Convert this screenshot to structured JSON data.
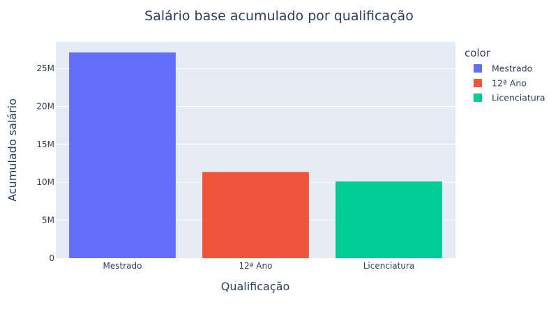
{
  "chart_data": {
    "type": "bar",
    "title": "Salário base acumulado por qualificação",
    "xlabel": "Qualificação",
    "ylabel": "Acumulado salário",
    "categories": [
      "Mestrado",
      "12ª Ano",
      "Licenciatura"
    ],
    "values": [
      27100000,
      11350000,
      10100000
    ],
    "colors": [
      "#636efa",
      "#ef553b",
      "#00cc96"
    ],
    "ylim": [
      0,
      28500000
    ],
    "yticks": [
      {
        "value": 0,
        "label": "0"
      },
      {
        "value": 5000000,
        "label": "5M"
      },
      {
        "value": 10000000,
        "label": "10M"
      },
      {
        "value": 15000000,
        "label": "15M"
      },
      {
        "value": 20000000,
        "label": "20M"
      },
      {
        "value": 25000000,
        "label": "25M"
      }
    ],
    "grid": true,
    "plot_background": "#e5ecf6",
    "legend": {
      "title": "color",
      "placement": "right",
      "entries": [
        "Mestrado",
        "12ª Ano",
        "Licenciatura"
      ]
    }
  }
}
